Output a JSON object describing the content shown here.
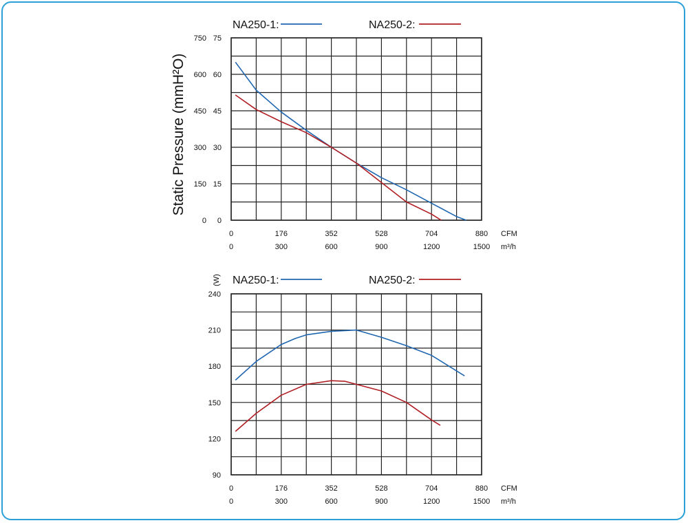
{
  "chart_data": [
    {
      "type": "line",
      "title": "",
      "ylabel": "Static Pressure (mmH²O)",
      "y_ticks_left": [
        "750",
        "600",
        "450",
        "300",
        "150",
        "0"
      ],
      "y_ticks_right": [
        "75",
        "60",
        "45",
        "30",
        "15",
        "0"
      ],
      "ylim": [
        0,
        75
      ],
      "xlim": [
        0,
        880
      ],
      "x_ticks_cfm": [
        "0",
        "176",
        "352",
        "528",
        "704",
        "880"
      ],
      "x_ticks_m3h": [
        "0",
        "300",
        "600",
        "900",
        "1200",
        "1500"
      ],
      "x_unit_cfm": "CFM",
      "x_unit_m3h": "m³/h",
      "series": [
        {
          "name": "NA250-1:",
          "color": "#1f66b0",
          "x": [
            15,
            88,
            176,
            264,
            352,
            440,
            528,
            616,
            704,
            792,
            826
          ],
          "y": [
            65,
            53.5,
            44.5,
            37,
            30,
            23.5,
            17.5,
            12.5,
            7,
            1.5,
            0
          ]
        },
        {
          "name": "NA250-2:",
          "color": "#b01e23",
          "x": [
            15,
            88,
            176,
            264,
            352,
            440,
            528,
            616,
            704,
            738
          ],
          "y": [
            51.5,
            45.5,
            40.5,
            36,
            30,
            23.5,
            15.5,
            7.5,
            2.5,
            0
          ]
        }
      ]
    },
    {
      "type": "line",
      "title": "",
      "ylabel": "(W)",
      "y_ticks": [
        "240",
        "210",
        "180",
        "150",
        "120",
        "90"
      ],
      "ylim": [
        90,
        240
      ],
      "xlim": [
        0,
        880
      ],
      "x_ticks_cfm": [
        "0",
        "176",
        "352",
        "528",
        "704",
        "880"
      ],
      "x_ticks_m3h": [
        "0",
        "300",
        "600",
        "900",
        "1200",
        "1500"
      ],
      "x_unit_cfm": "CFM",
      "x_unit_m3h": "m³/h",
      "series": [
        {
          "name": "NA250-1:",
          "color": "#1f66b0",
          "x": [
            15,
            88,
            176,
            225,
            264,
            352,
            440,
            528,
            616,
            704,
            820
          ],
          "y": [
            168.5,
            184,
            198,
            203,
            206,
            209,
            210,
            204,
            197,
            189,
            172
          ]
        },
        {
          "name": "NA250-2:",
          "color": "#b01e23",
          "x": [
            15,
            88,
            176,
            264,
            352,
            400,
            440,
            528,
            616,
            704,
            735
          ],
          "y": [
            126,
            141,
            156,
            165,
            168,
            167.5,
            165,
            159.5,
            150,
            135.5,
            131
          ]
        }
      ]
    }
  ]
}
